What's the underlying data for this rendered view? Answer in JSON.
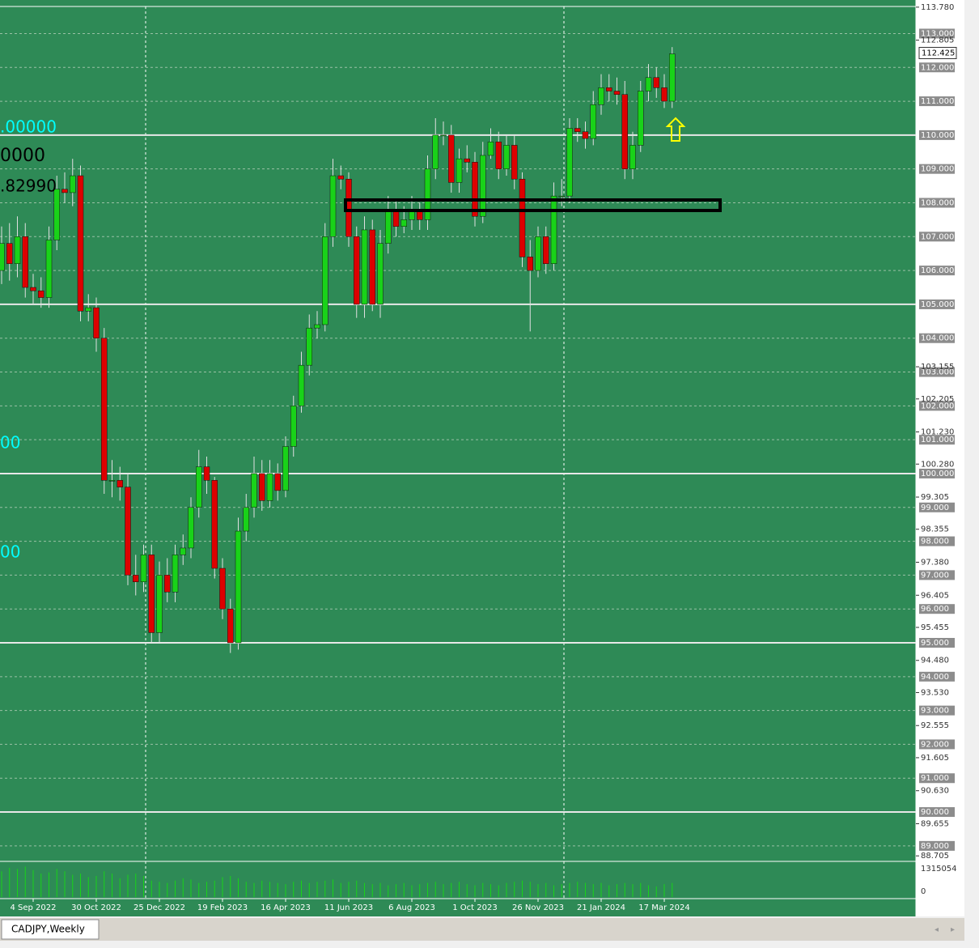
{
  "chart_data": {
    "type": "candlestick",
    "symbol_tab": "CADJPY,Weekly",
    "annotations": [
      ".00000",
      "0000",
      ".82990",
      "00",
      "00"
    ],
    "categories": [
      null,
      null,
      null,
      null,
      "4 Sep 2022",
      null,
      null,
      null,
      null,
      null,
      null,
      null,
      "30 Oct 2022",
      null,
      null,
      null,
      null,
      null,
      null,
      null,
      "25 Dec 2022",
      null,
      null,
      null,
      null,
      null,
      null,
      null,
      "19 Feb 2023",
      null,
      null,
      null,
      null,
      null,
      null,
      null,
      "16 Apr 2023",
      null,
      null,
      null,
      null,
      null,
      null,
      null,
      "11 Jun 2023",
      null,
      null,
      null,
      null,
      null,
      null,
      null,
      "6 Aug 2023",
      null,
      null,
      null,
      null,
      null,
      null,
      null,
      "1 Oct 2023",
      null,
      null,
      null,
      null,
      null,
      null,
      null,
      "26 Nov 2023",
      null,
      null,
      null,
      null,
      null,
      null,
      null,
      "21 Jan 2024",
      null,
      null,
      null,
      null,
      null,
      null,
      null,
      "17 Mar 2024",
      null
    ],
    "open": [
      106.0,
      106.8,
      106.2,
      107.0,
      105.5,
      105.4,
      105.2,
      106.9,
      108.4,
      108.3,
      108.8,
      104.8,
      104.9,
      104.0,
      99.8,
      99.8,
      99.6,
      97.0,
      96.8,
      97.6,
      95.3,
      97.0,
      96.5,
      97.6,
      97.8,
      99.0,
      100.2,
      99.8,
      97.2,
      96.0,
      95.0,
      98.3,
      99.0,
      100.0,
      99.2,
      100.0,
      99.5,
      100.8,
      102.0,
      103.2,
      104.3,
      104.4,
      107.0,
      108.8,
      108.7,
      107.0,
      105.0,
      107.2,
      105.0,
      106.8,
      107.8,
      107.3,
      107.5,
      107.8,
      107.5,
      109.0,
      110.0,
      110.0,
      108.6,
      109.3,
      109.2,
      107.6,
      109.4,
      109.8,
      109.0,
      109.7,
      108.7,
      106.4,
      106.0,
      107.0,
      106.2,
      108.2,
      108.2,
      110.2,
      110.1,
      109.9,
      110.9,
      111.4,
      111.3,
      111.2,
      109.0,
      109.7,
      111.3,
      111.7,
      111.4,
      111.0
    ],
    "high": [
      107.3,
      107.4,
      107.6,
      107.4,
      105.9,
      105.8,
      107.3,
      108.8,
      108.9,
      109.3,
      109.1,
      105.3,
      105.2,
      104.3,
      100.4,
      100.2,
      100.0,
      97.6,
      97.9,
      97.9,
      97.4,
      97.5,
      97.9,
      98.2,
      99.3,
      100.7,
      100.5,
      99.9,
      97.5,
      96.3,
      98.7,
      99.4,
      100.5,
      100.4,
      100.4,
      100.3,
      101.1,
      102.3,
      103.6,
      104.7,
      104.8,
      107.4,
      109.3,
      109.1,
      108.9,
      107.3,
      107.6,
      107.5,
      107.2,
      108.2,
      108.1,
      107.9,
      108.2,
      108.0,
      109.4,
      110.5,
      110.4,
      110.3,
      109.6,
      109.7,
      109.5,
      109.8,
      110.2,
      110.1,
      110.0,
      110.0,
      108.9,
      106.9,
      107.3,
      107.3,
      108.6,
      108.7,
      110.5,
      110.5,
      110.4,
      111.3,
      111.8,
      111.8,
      111.7,
      111.6,
      110.1,
      111.6,
      112.1,
      112.0,
      111.8,
      112.6
    ],
    "low": [
      105.6,
      105.7,
      105.8,
      105.2,
      105.0,
      104.9,
      104.9,
      106.6,
      108.0,
      107.9,
      104.5,
      104.5,
      103.6,
      99.4,
      99.3,
      99.2,
      96.7,
      96.4,
      96.5,
      95.0,
      95.0,
      96.2,
      96.2,
      97.3,
      97.5,
      98.7,
      99.4,
      96.9,
      95.7,
      94.7,
      94.8,
      98.0,
      98.7,
      98.9,
      99.0,
      99.2,
      99.3,
      100.5,
      101.8,
      102.9,
      104.0,
      104.2,
      106.7,
      108.4,
      106.7,
      104.6,
      104.6,
      104.8,
      104.6,
      106.5,
      107.0,
      107.1,
      107.2,
      107.2,
      107.2,
      108.7,
      109.7,
      108.3,
      108.3,
      108.9,
      107.3,
      107.4,
      109.3,
      108.7,
      108.8,
      108.4,
      106.1,
      104.2,
      105.8,
      105.9,
      106.0,
      107.9,
      108.0,
      109.8,
      109.6,
      109.7,
      110.6,
      111.0,
      110.9,
      108.7,
      108.7,
      109.5,
      111.0,
      111.1,
      110.8,
      110.8
    ],
    "close": [
      106.8,
      106.2,
      107.0,
      105.5,
      105.4,
      105.2,
      106.9,
      108.4,
      108.3,
      108.8,
      104.8,
      104.9,
      104.0,
      99.8,
      99.8,
      99.6,
      97.0,
      96.8,
      97.6,
      95.3,
      97.0,
      96.5,
      97.6,
      97.8,
      99.0,
      100.2,
      99.8,
      97.2,
      96.0,
      95.0,
      98.3,
      99.0,
      100.0,
      99.2,
      100.0,
      99.5,
      100.8,
      102.0,
      103.2,
      104.3,
      104.4,
      107.0,
      108.8,
      108.7,
      107.0,
      105.0,
      107.2,
      105.0,
      106.8,
      107.8,
      107.3,
      107.5,
      107.8,
      107.5,
      109.0,
      110.0,
      110.0,
      108.6,
      109.3,
      109.2,
      107.6,
      109.4,
      109.8,
      109.0,
      109.7,
      108.7,
      106.4,
      106.0,
      107.0,
      106.2,
      108.2,
      108.2,
      110.2,
      110.1,
      109.9,
      110.9,
      111.4,
      111.3,
      111.2,
      109.0,
      109.7,
      111.3,
      111.7,
      111.4,
      111.0,
      112.4
    ],
    "volume": [
      1100000,
      1250000,
      1200000,
      1300000,
      1150000,
      1000000,
      1050000,
      1200000,
      1100000,
      950000,
      1000000,
      850000,
      900000,
      1100000,
      1000000,
      800000,
      950000,
      1000000,
      900000,
      700000,
      650000,
      600000,
      700000,
      800000,
      750000,
      600000,
      650000,
      700000,
      850000,
      900000,
      800000,
      650000,
      600000,
      700000,
      650000,
      600000,
      550000,
      650000,
      700000,
      600000,
      650000,
      700000,
      750000,
      600000,
      650000,
      700000,
      600000,
      550000,
      600000,
      500000,
      550000,
      600000,
      500000,
      550000,
      600000,
      650000,
      550000,
      600000,
      650000,
      550000,
      500000,
      600000,
      550000,
      500000,
      600000,
      650000,
      700000,
      650000,
      550000,
      600000,
      500000,
      550000,
      600000,
      650000,
      600000,
      550000,
      600000,
      500000,
      550000,
      600000,
      550000,
      600000,
      500000,
      450000,
      550000,
      600000
    ],
    "up_color": "#19d219",
    "down_color": "#dd0000",
    "background": "#2e8a56",
    "ylim": [
      88.59,
      113.8
    ],
    "yticks": [
      {
        "value": 113,
        "label": "113.000"
      },
      {
        "value": 112,
        "label": "112.000"
      },
      {
        "value": 111,
        "label": "111.000"
      },
      {
        "value": 110,
        "label": "110.000"
      },
      {
        "value": 109,
        "label": "109.000"
      },
      {
        "value": 108,
        "label": "108.000"
      },
      {
        "value": 107,
        "label": "107.000"
      },
      {
        "value": 106,
        "label": "106.000"
      },
      {
        "value": 105,
        "label": "105.000"
      },
      {
        "value": 104,
        "label": "104.000"
      },
      {
        "value": 103,
        "label": "103.000"
      },
      {
        "value": 102,
        "label": "102.000"
      },
      {
        "value": 101,
        "label": "101.000"
      },
      {
        "value": 100,
        "label": "100.000"
      },
      {
        "value": 99,
        "label": "99.000"
      },
      {
        "value": 98,
        "label": "98.000"
      },
      {
        "value": 97,
        "label": "97.000"
      },
      {
        "value": 96,
        "label": "96.000"
      },
      {
        "value": 95,
        "label": "95.000"
      },
      {
        "value": 94,
        "label": "94.000"
      },
      {
        "value": 93,
        "label": "93.000"
      },
      {
        "value": 92,
        "label": "92.000"
      },
      {
        "value": 91,
        "label": "91.000"
      },
      {
        "value": 90,
        "label": "90.000"
      },
      {
        "value": 89,
        "label": "89.000"
      }
    ],
    "yticks_minor": [
      {
        "value": 113.78,
        "label": "113.780"
      },
      112.805,
      103.155,
      102.205,
      {
        "value": 101.23,
        "label": "101.230"
      },
      {
        "value": 100.28,
        "label": "100.280"
      },
      99.305,
      98.355,
      {
        "value": 97.38,
        "label": "97.380"
      },
      96.405,
      95.455,
      {
        "value": 94.48,
        "label": "94.480"
      },
      {
        "value": 93.53,
        "label": "93.530"
      },
      92.555,
      91.605,
      {
        "value": 90.63,
        "label": "90.630"
      },
      89.655,
      88.705
    ],
    "current_price": 112.425,
    "levels": [
      110,
      105,
      100,
      95,
      90
    ],
    "grid": true,
    "vol_ylim": [
      0,
      1315054
    ],
    "vol_ticks": [
      1315054,
      0
    ]
  }
}
